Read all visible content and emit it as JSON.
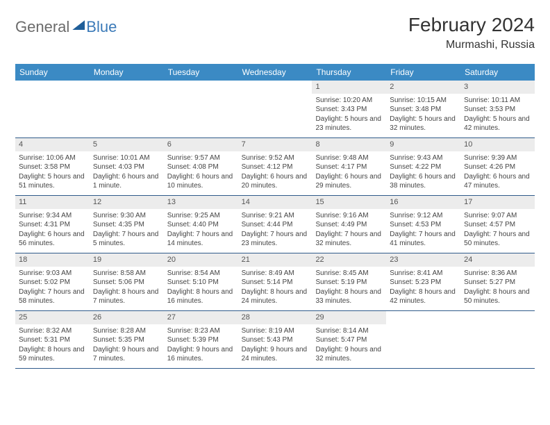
{
  "logo": {
    "text1": "General",
    "text2": "Blue"
  },
  "title": "February 2024",
  "location": "Murmashi, Russia",
  "colors": {
    "header_bg": "#3b8ac4",
    "header_text": "#ffffff",
    "daynum_bg": "#ececec",
    "border": "#2e5a8a",
    "logo_gray": "#6b6b6b",
    "logo_blue": "#3b7ab8",
    "logo_triangle": "#1f5e99"
  },
  "day_headers": [
    "Sunday",
    "Monday",
    "Tuesday",
    "Wednesday",
    "Thursday",
    "Friday",
    "Saturday"
  ],
  "weeks": [
    [
      {
        "n": "",
        "sr": "",
        "ss": "",
        "dl": ""
      },
      {
        "n": "",
        "sr": "",
        "ss": "",
        "dl": ""
      },
      {
        "n": "",
        "sr": "",
        "ss": "",
        "dl": ""
      },
      {
        "n": "",
        "sr": "",
        "ss": "",
        "dl": ""
      },
      {
        "n": "1",
        "sr": "Sunrise: 10:20 AM",
        "ss": "Sunset: 3:43 PM",
        "dl": "Daylight: 5 hours and 23 minutes."
      },
      {
        "n": "2",
        "sr": "Sunrise: 10:15 AM",
        "ss": "Sunset: 3:48 PM",
        "dl": "Daylight: 5 hours and 32 minutes."
      },
      {
        "n": "3",
        "sr": "Sunrise: 10:11 AM",
        "ss": "Sunset: 3:53 PM",
        "dl": "Daylight: 5 hours and 42 minutes."
      }
    ],
    [
      {
        "n": "4",
        "sr": "Sunrise: 10:06 AM",
        "ss": "Sunset: 3:58 PM",
        "dl": "Daylight: 5 hours and 51 minutes."
      },
      {
        "n": "5",
        "sr": "Sunrise: 10:01 AM",
        "ss": "Sunset: 4:03 PM",
        "dl": "Daylight: 6 hours and 1 minute."
      },
      {
        "n": "6",
        "sr": "Sunrise: 9:57 AM",
        "ss": "Sunset: 4:08 PM",
        "dl": "Daylight: 6 hours and 10 minutes."
      },
      {
        "n": "7",
        "sr": "Sunrise: 9:52 AM",
        "ss": "Sunset: 4:12 PM",
        "dl": "Daylight: 6 hours and 20 minutes."
      },
      {
        "n": "8",
        "sr": "Sunrise: 9:48 AM",
        "ss": "Sunset: 4:17 PM",
        "dl": "Daylight: 6 hours and 29 minutes."
      },
      {
        "n": "9",
        "sr": "Sunrise: 9:43 AM",
        "ss": "Sunset: 4:22 PM",
        "dl": "Daylight: 6 hours and 38 minutes."
      },
      {
        "n": "10",
        "sr": "Sunrise: 9:39 AM",
        "ss": "Sunset: 4:26 PM",
        "dl": "Daylight: 6 hours and 47 minutes."
      }
    ],
    [
      {
        "n": "11",
        "sr": "Sunrise: 9:34 AM",
        "ss": "Sunset: 4:31 PM",
        "dl": "Daylight: 6 hours and 56 minutes."
      },
      {
        "n": "12",
        "sr": "Sunrise: 9:30 AM",
        "ss": "Sunset: 4:35 PM",
        "dl": "Daylight: 7 hours and 5 minutes."
      },
      {
        "n": "13",
        "sr": "Sunrise: 9:25 AM",
        "ss": "Sunset: 4:40 PM",
        "dl": "Daylight: 7 hours and 14 minutes."
      },
      {
        "n": "14",
        "sr": "Sunrise: 9:21 AM",
        "ss": "Sunset: 4:44 PM",
        "dl": "Daylight: 7 hours and 23 minutes."
      },
      {
        "n": "15",
        "sr": "Sunrise: 9:16 AM",
        "ss": "Sunset: 4:49 PM",
        "dl": "Daylight: 7 hours and 32 minutes."
      },
      {
        "n": "16",
        "sr": "Sunrise: 9:12 AM",
        "ss": "Sunset: 4:53 PM",
        "dl": "Daylight: 7 hours and 41 minutes."
      },
      {
        "n": "17",
        "sr": "Sunrise: 9:07 AM",
        "ss": "Sunset: 4:57 PM",
        "dl": "Daylight: 7 hours and 50 minutes."
      }
    ],
    [
      {
        "n": "18",
        "sr": "Sunrise: 9:03 AM",
        "ss": "Sunset: 5:02 PM",
        "dl": "Daylight: 7 hours and 58 minutes."
      },
      {
        "n": "19",
        "sr": "Sunrise: 8:58 AM",
        "ss": "Sunset: 5:06 PM",
        "dl": "Daylight: 8 hours and 7 minutes."
      },
      {
        "n": "20",
        "sr": "Sunrise: 8:54 AM",
        "ss": "Sunset: 5:10 PM",
        "dl": "Daylight: 8 hours and 16 minutes."
      },
      {
        "n": "21",
        "sr": "Sunrise: 8:49 AM",
        "ss": "Sunset: 5:14 PM",
        "dl": "Daylight: 8 hours and 24 minutes."
      },
      {
        "n": "22",
        "sr": "Sunrise: 8:45 AM",
        "ss": "Sunset: 5:19 PM",
        "dl": "Daylight: 8 hours and 33 minutes."
      },
      {
        "n": "23",
        "sr": "Sunrise: 8:41 AM",
        "ss": "Sunset: 5:23 PM",
        "dl": "Daylight: 8 hours and 42 minutes."
      },
      {
        "n": "24",
        "sr": "Sunrise: 8:36 AM",
        "ss": "Sunset: 5:27 PM",
        "dl": "Daylight: 8 hours and 50 minutes."
      }
    ],
    [
      {
        "n": "25",
        "sr": "Sunrise: 8:32 AM",
        "ss": "Sunset: 5:31 PM",
        "dl": "Daylight: 8 hours and 59 minutes."
      },
      {
        "n": "26",
        "sr": "Sunrise: 8:28 AM",
        "ss": "Sunset: 5:35 PM",
        "dl": "Daylight: 9 hours and 7 minutes."
      },
      {
        "n": "27",
        "sr": "Sunrise: 8:23 AM",
        "ss": "Sunset: 5:39 PM",
        "dl": "Daylight: 9 hours and 16 minutes."
      },
      {
        "n": "28",
        "sr": "Sunrise: 8:19 AM",
        "ss": "Sunset: 5:43 PM",
        "dl": "Daylight: 9 hours and 24 minutes."
      },
      {
        "n": "29",
        "sr": "Sunrise: 8:14 AM",
        "ss": "Sunset: 5:47 PM",
        "dl": "Daylight: 9 hours and 32 minutes."
      },
      {
        "n": "",
        "sr": "",
        "ss": "",
        "dl": ""
      },
      {
        "n": "",
        "sr": "",
        "ss": "",
        "dl": ""
      }
    ]
  ]
}
